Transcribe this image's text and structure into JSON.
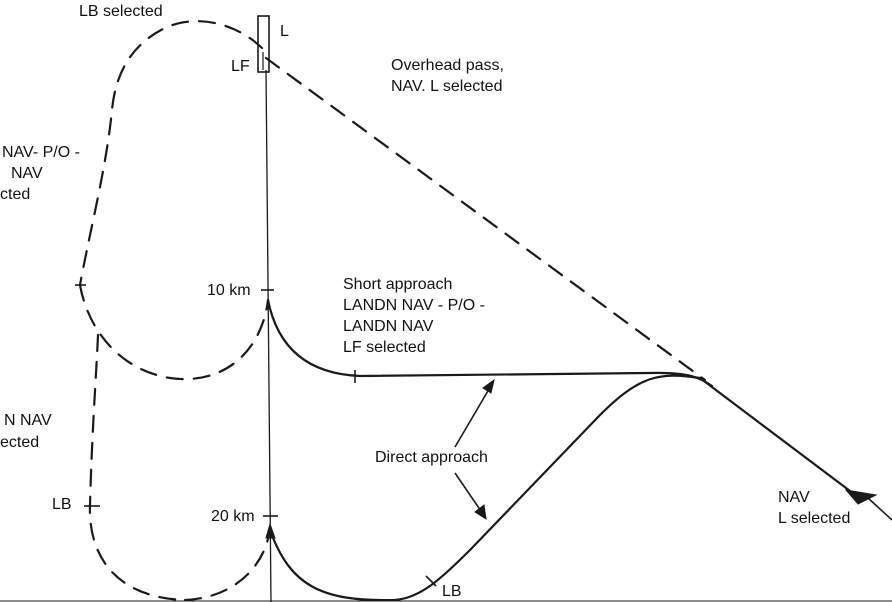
{
  "labels": {
    "lb_selected_top": "LB selected",
    "runway_l": "L",
    "runway_lf": "LF",
    "overhead_line1": "Overhead pass,",
    "overhead_line2": "NAV. L selected",
    "left_mid_line1": "NAV- P/O -",
    "left_mid_line2": "NAV",
    "left_mid_line3": "cted",
    "dist_10": "10 km",
    "dist_20": "20 km",
    "short_line1": "Short approach",
    "short_line2": "LANDN NAV - P/O -",
    "short_line3": "LANDN NAV",
    "short_line4": "LF selected",
    "left_low_line1": "N NAV",
    "left_low_line2": "ected",
    "direct_approach": "Direct approach",
    "lb_left": "LB",
    "lb_bottom": "LB",
    "nav_line1": "NAV",
    "nav_line2": "L selected"
  },
  "colors": {
    "ink": "#1a1a1a",
    "background": "#ffffff"
  }
}
